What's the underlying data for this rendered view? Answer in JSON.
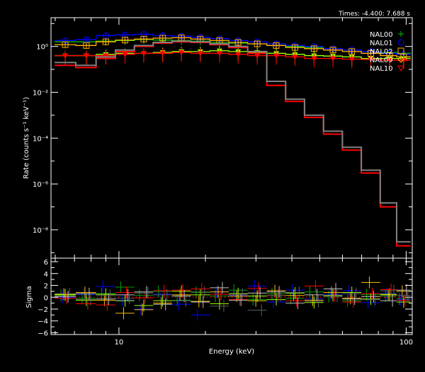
{
  "chart_data": [
    {
      "type": "line",
      "subtitle": "Times: -4.400: 7.688 s",
      "xlabel": "Energy (keV)",
      "ylabel": "Rate (counts s⁻¹ keV⁻¹)",
      "xscale": "log",
      "yscale": "log",
      "xlim": [
        5.8,
        105
      ],
      "ylim": [
        5.8e-10,
        18
      ],
      "yticks": [
        {
          "value": 1,
          "label": "10⁰"
        },
        {
          "value": 0.01,
          "label": "10⁻²"
        },
        {
          "value": 0.0001,
          "label": "10⁻⁴"
        },
        {
          "value": 1e-06,
          "label": "10⁻⁶"
        },
        {
          "value": 1e-08,
          "label": "10⁻⁸"
        }
      ],
      "legend_placement": "top-right",
      "x": [
        6.5,
        7.7,
        9.0,
        10.5,
        12.2,
        14.2,
        16.5,
        19.2,
        22.4,
        26,
        30.3,
        35.3,
        41,
        47.8,
        55.6,
        64.7,
        75.3,
        87.6,
        98
      ],
      "series": [
        {
          "name": "NAL00",
          "color": "#00c000",
          "marker": "plus",
          "err_frac": 0.35,
          "values": [
            1.6,
            1.6,
            1.7,
            1.8,
            2.0,
            1.9,
            1.8,
            1.7,
            1.5,
            1.4,
            1.3,
            1.1,
            1.0,
            0.9,
            0.8,
            0.7,
            0.6,
            0.55,
            0.5
          ]
        },
        {
          "name": "NAL01",
          "color": "#0000ff",
          "marker": "circle",
          "err_frac": 0.3,
          "values": [
            1.8,
            2.0,
            3.0,
            3.2,
            3.4,
            3.0,
            2.8,
            2.5,
            2.2,
            1.8,
            1.6,
            1.3,
            1.1,
            1.0,
            0.8,
            0.7,
            0.6,
            0.5,
            0.45
          ]
        },
        {
          "name": "NAL02",
          "color": "#ffb000",
          "marker": "square",
          "err_frac": 0.3,
          "values": [
            1.2,
            1.1,
            1.6,
            1.9,
            2.1,
            2.3,
            2.4,
            2.1,
            1.8,
            1.5,
            1.3,
            1.1,
            0.9,
            0.8,
            0.7,
            0.6,
            0.5,
            0.4,
            0.35
          ]
        },
        {
          "name": "NAL09",
          "color": "#a0ff00",
          "marker": "diamond",
          "err_frac": 0.6,
          "values": [
            0.4,
            0.4,
            0.45,
            0.5,
            0.5,
            0.55,
            0.6,
            0.6,
            0.65,
            0.6,
            0.55,
            0.5,
            0.45,
            0.4,
            0.38,
            0.35,
            0.3,
            0.3,
            0.3
          ]
        },
        {
          "name": "NAL10",
          "color": "#ff0000",
          "marker": "triangle",
          "err_frac": 0.6,
          "values": [
            0.4,
            0.4,
            0.4,
            0.45,
            0.5,
            0.5,
            0.55,
            0.5,
            0.5,
            0.45,
            0.4,
            0.4,
            0.35,
            0.3,
            0.3,
            0.28,
            0.27,
            0.25,
            0.25
          ]
        },
        {
          "color": "#ff0000",
          "marker": "none",
          "err_frac": 0,
          "values": [
            0.15,
            0.12,
            0.3,
            0.6,
            1.0,
            1.4,
            1.6,
            1.5,
            1.2,
            0.9,
            0.5,
            0.02,
            0.004,
            0.0008,
            0.00015,
            3e-05,
            3e-06,
            1e-07,
            2e-09
          ]
        },
        {
          "color": "#808080",
          "marker": "none",
          "err_frac": 0,
          "values": [
            0.2,
            0.15,
            0.35,
            0.7,
            1.1,
            1.5,
            1.7,
            1.6,
            1.3,
            1.0,
            0.6,
            0.03,
            0.005,
            0.001,
            0.0002,
            4e-05,
            4e-06,
            1.5e-07,
            3e-09
          ]
        }
      ]
    },
    {
      "type": "scatter",
      "xlabel": "Energy (keV)",
      "ylabel": "Sigma",
      "xscale": "log",
      "xlim": [
        5.8,
        105
      ],
      "ylim": [
        -6.3,
        6.6
      ],
      "xticks": [
        {
          "value": 10,
          "label": "10"
        },
        {
          "value": 100,
          "label": "100"
        }
      ],
      "yticks": [
        6,
        4,
        2,
        0,
        -2,
        -4,
        -6
      ],
      "zero_line_color": "#ff0000",
      "x": [
        6.5,
        7.7,
        9.0,
        10.5,
        12.2,
        14.2,
        16.5,
        19.2,
        22.4,
        26,
        30.3,
        35.3,
        41,
        47.8,
        55.6,
        64.7,
        75.3,
        87.6,
        98
      ],
      "series": [
        {
          "color": "#00a000",
          "values": [
            0.3,
            -0.2,
            0.6,
            1.7,
            0.3,
            1.0,
            -0.5,
            0.8,
            0.2,
            1.2,
            -0.4,
            0.6,
            -0.2,
            0.9,
            0.1,
            -0.6,
            0.4,
            0.2,
            -0.3
          ]
        },
        {
          "color": "#0000ff",
          "values": [
            0.0,
            0.5,
            1.8,
            -0.5,
            -2.0,
            0.5,
            -1.2,
            -3.0,
            0.9,
            0.3,
            1.9,
            -0.8,
            1.2,
            -0.3,
            0.5,
            1.1,
            -0.9,
            0.6,
            -0.4
          ]
        },
        {
          "color": "#ffc000",
          "values": [
            0.5,
            0.8,
            -0.5,
            -2.7,
            -2.1,
            -1.0,
            0.4,
            -0.7,
            0.9,
            0.2,
            -0.6,
            1.1,
            0.3,
            -0.5,
            0.8,
            -0.2,
            2.5,
            0.4,
            1.0
          ]
        },
        {
          "color": "#a0ff00",
          "values": [
            0.4,
            -0.5,
            0.5,
            -0.6,
            -1.4,
            -0.6,
            1.0,
            0.4,
            -1.1,
            0.6,
            0.2,
            -0.4,
            0.7,
            -0.9,
            0.3,
            0.8,
            -0.3,
            0.5,
            -0.8
          ]
        },
        {
          "color": "#ff0000",
          "values": [
            -0.2,
            -1.1,
            -1.3,
            0.8,
            -0.1,
            1.1,
            1.2,
            1.4,
            0.5,
            -0.4,
            1.5,
            0.3,
            -0.6,
            1.9,
            0.2,
            -0.8,
            0.6,
            1.3,
            -0.5
          ]
        },
        {
          "color": "#c0c0c0",
          "values": [
            0.1,
            0.6,
            -0.3,
            0.4,
            0.9,
            -1.2,
            0.2,
            -0.8,
            1.6,
            -0.5,
            0.7,
            0.9,
            -1.0,
            0.4,
            1.4,
            -0.3,
            0.1,
            -0.6,
            1.2
          ]
        },
        {
          "color": "#606060",
          "values": [
            0.6,
            -0.4,
            0.3,
            -0.2,
            0.7,
            0.4,
            -0.6,
            0.9,
            -1.5,
            0.5,
            -2.2,
            0.3,
            0.8,
            -0.7,
            0.2,
            0.6,
            -0.4,
            1.1,
            0.3
          ]
        }
      ]
    }
  ]
}
